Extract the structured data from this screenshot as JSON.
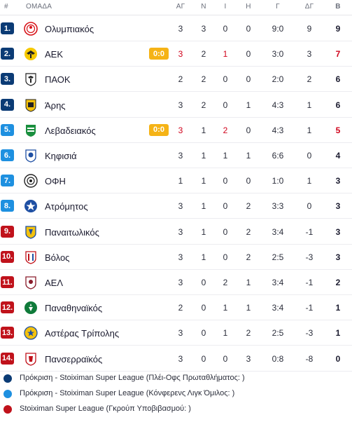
{
  "header": {
    "position_label": "#",
    "team_label": "ΟΜΑΔΑ",
    "col_ag": "ΑΓ",
    "col_n": "Ν",
    "col_i": "Ι",
    "col_h": "Η",
    "col_g": "Γ",
    "col_dg": "ΔΓ",
    "col_b": "Β"
  },
  "colors": {
    "qual_championship": "#0b3b75",
    "qual_conference": "#1e90e0",
    "relegation_group": "#c0121b",
    "live_badge": "#f5b316",
    "negative": "#d0021b"
  },
  "rows": [
    {
      "rank": "1.",
      "team": "Ολυμπιακός",
      "logo": "olympiacos-logo",
      "zone": "qual_championship",
      "live": "",
      "ag": "3",
      "n": "3",
      "i": "0",
      "h": "0",
      "g": "9:0",
      "dg": "9",
      "b": "9"
    },
    {
      "rank": "2.",
      "team": "ΑΕΚ",
      "logo": "aek-logo",
      "zone": "qual_championship",
      "live": "0:0",
      "ag": "3",
      "n": "2",
      "i": "1",
      "h": "0",
      "g": "3:0",
      "dg": "3",
      "b": "7"
    },
    {
      "rank": "3.",
      "team": "ΠΑΟΚ",
      "logo": "paok-logo",
      "zone": "qual_championship",
      "live": "",
      "ag": "2",
      "n": "2",
      "i": "0",
      "h": "0",
      "g": "2:0",
      "dg": "2",
      "b": "6"
    },
    {
      "rank": "4.",
      "team": "Άρης",
      "logo": "aris-logo",
      "zone": "qual_championship",
      "live": "",
      "ag": "3",
      "n": "2",
      "i": "0",
      "h": "1",
      "g": "4:3",
      "dg": "1",
      "b": "6"
    },
    {
      "rank": "5.",
      "team": "Λεβαδειακός",
      "logo": "levadiakos-logo",
      "zone": "qual_conference",
      "live": "0:0",
      "ag": "3",
      "n": "1",
      "i": "2",
      "h": "0",
      "g": "4:3",
      "dg": "1",
      "b": "5"
    },
    {
      "rank": "6.",
      "team": "Κηφισιά",
      "logo": "kifisia-logo",
      "zone": "qual_conference",
      "live": "",
      "ag": "3",
      "n": "1",
      "i": "1",
      "h": "1",
      "g": "6:6",
      "dg": "0",
      "b": "4"
    },
    {
      "rank": "7.",
      "team": "ΟΦΗ",
      "logo": "ofi-logo",
      "zone": "qual_conference",
      "live": "",
      "ag": "1",
      "n": "1",
      "i": "0",
      "h": "0",
      "g": "1:0",
      "dg": "1",
      "b": "3"
    },
    {
      "rank": "8.",
      "team": "Ατρόμητος",
      "logo": "atromitos-logo",
      "zone": "qual_conference",
      "live": "",
      "ag": "3",
      "n": "1",
      "i": "0",
      "h": "2",
      "g": "3:3",
      "dg": "0",
      "b": "3"
    },
    {
      "rank": "9.",
      "team": "Παναιτωλικός",
      "logo": "panetolikos-logo",
      "zone": "relegation_group",
      "live": "",
      "ag": "3",
      "n": "1",
      "i": "0",
      "h": "2",
      "g": "3:4",
      "dg": "-1",
      "b": "3"
    },
    {
      "rank": "10.",
      "team": "Βόλος",
      "logo": "volos-logo",
      "zone": "relegation_group",
      "live": "",
      "ag": "3",
      "n": "1",
      "i": "0",
      "h": "2",
      "g": "2:5",
      "dg": "-3",
      "b": "3"
    },
    {
      "rank": "11.",
      "team": "ΑΕΛ",
      "logo": "ael-logo",
      "zone": "relegation_group",
      "live": "",
      "ag": "3",
      "n": "0",
      "i": "2",
      "h": "1",
      "g": "3:4",
      "dg": "-1",
      "b": "2"
    },
    {
      "rank": "12.",
      "team": "Παναθηναϊκός",
      "logo": "panathinaikos-logo",
      "zone": "relegation_group",
      "live": "",
      "ag": "2",
      "n": "0",
      "i": "1",
      "h": "1",
      "g": "3:4",
      "dg": "-1",
      "b": "1"
    },
    {
      "rank": "13.",
      "team": "Αστέρας Τρίπολης",
      "logo": "asteras-logo",
      "zone": "relegation_group",
      "live": "",
      "ag": "3",
      "n": "0",
      "i": "1",
      "h": "2",
      "g": "2:5",
      "dg": "-3",
      "b": "1"
    },
    {
      "rank": "14.",
      "team": "Πανσερραϊκός",
      "logo": "panserraikos-logo",
      "zone": "relegation_group",
      "live": "",
      "ag": "3",
      "n": "0",
      "i": "0",
      "h": "3",
      "g": "0:8",
      "dg": "-8",
      "b": "0"
    }
  ],
  "legend": [
    {
      "zone": "qual_championship",
      "text": "Πρόκριση - Stoiximan Super League (Πλέι-Οφς Πρωταθλήματος: )"
    },
    {
      "zone": "qual_conference",
      "text": "Πρόκριση - Stoiximan Super League (Κόνφερενς Λιγκ Όμιλος: )"
    },
    {
      "zone": "relegation_group",
      "text": "Stoiximan Super League (Γκρούπ Υποβιβασμού: )"
    }
  ]
}
